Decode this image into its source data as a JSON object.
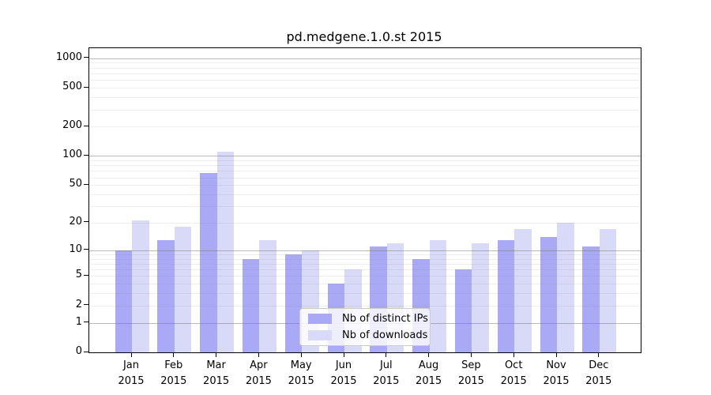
{
  "page": {
    "background": "#ffffff"
  },
  "chart_data": {
    "type": "bar",
    "title": "pd.medgene.1.0.st 2015",
    "categories": [
      "Jan",
      "Feb",
      "Mar",
      "Apr",
      "May",
      "Jun",
      "Jul",
      "Aug",
      "Sep",
      "Oct",
      "Nov",
      "Dec"
    ],
    "category_year": "2015",
    "series": [
      {
        "name": "Nb of distinct IPs",
        "color": "#a9a9f5",
        "values": [
          10,
          13,
          66,
          8,
          9,
          4,
          11,
          8,
          6,
          13,
          14,
          11
        ]
      },
      {
        "name": "Nb of downloads",
        "color": "#d9d9f8",
        "values": [
          21,
          18,
          110,
          13,
          10,
          6,
          12,
          13,
          12,
          17,
          20,
          17
        ]
      }
    ],
    "xlabel": "",
    "ylabel": "",
    "yscale": "log10(value+1)",
    "ylim": [
      0,
      1266
    ],
    "yticks": [
      0,
      1,
      2,
      5,
      10,
      20,
      50,
      100,
      200,
      500,
      1000
    ],
    "major_gridlines": [
      1,
      10,
      100,
      1000
    ],
    "minor_gridlines": [
      2,
      3,
      4,
      5,
      6,
      7,
      8,
      9,
      20,
      30,
      40,
      50,
      60,
      70,
      80,
      90,
      200,
      300,
      400,
      500,
      600,
      700,
      800,
      900
    ],
    "grid": "on",
    "legend_position": "lower-center"
  },
  "legend": {
    "items": [
      {
        "label": "Nb of distinct IPs"
      },
      {
        "label": "Nb of downloads"
      }
    ]
  },
  "colors": {
    "bar_ips": "#a9a9f5",
    "bar_downloads": "#d9d9f8",
    "grid_major": "rgba(120,120,120,0.50)",
    "grid_minor": "rgba(120,120,120,0.13)",
    "axis": "#000000",
    "legend_border": "#cccccc"
  }
}
